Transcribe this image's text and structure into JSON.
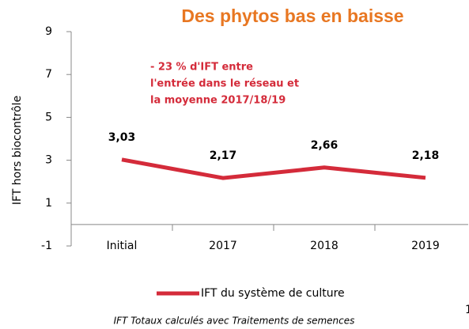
{
  "chart_data": {
    "type": "line",
    "title": "Des phytos bas en baisse",
    "y_label": "IFT  hors biocontrôle",
    "categories": [
      "Initial",
      "2017",
      "2018",
      "2019"
    ],
    "series": [
      {
        "name": "IFT du système de culture",
        "color": "#d42b3a",
        "values": [
          3.03,
          2.17,
          2.66,
          2.18
        ],
        "value_labels": [
          "3,03",
          "2,17",
          "2,66",
          "2,18"
        ]
      }
    ],
    "ylim": [
      -1,
      9
    ],
    "yticks": [
      -1,
      1,
      3,
      5,
      7,
      9
    ],
    "annotation": [
      "- 23 % d'IFT entre",
      "l'entrée dans le réseau et",
      "la moyenne 2017/18/19"
    ],
    "footnote": "IFT Totaux calculés avec Traitements de semences",
    "page_number": "1"
  }
}
